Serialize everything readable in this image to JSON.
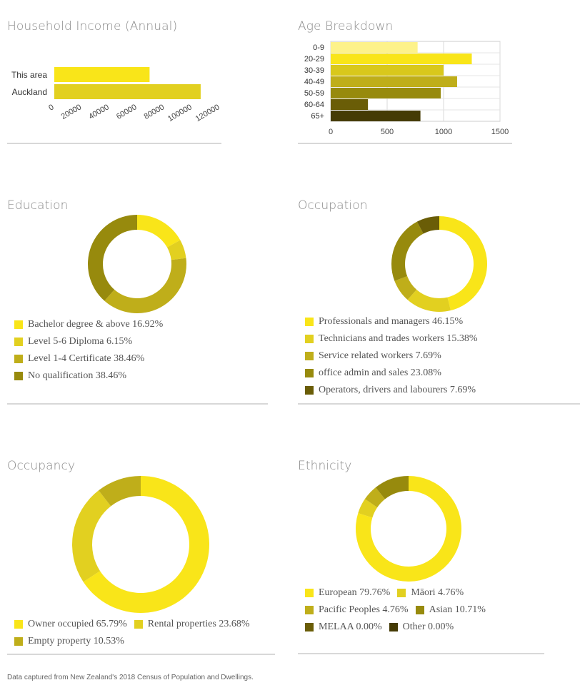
{
  "footer": "Data captured from New Zealand's 2018 Census of Population and Dwellings.",
  "colors": [
    "#f9e519",
    "#e2d020",
    "#bfae1a",
    "#978a0d",
    "#6a5d07",
    "#453b05"
  ],
  "chart_data": [
    {
      "id": "income",
      "type": "bar",
      "orientation": "horizontal",
      "title": "Household Income (Annual)",
      "categories": [
        "This area",
        "Auckland"
      ],
      "values": [
        69000,
        106000
      ],
      "colors": [
        "#f9e519",
        "#e2d020"
      ],
      "xlim": [
        0,
        120000
      ],
      "xticks": [
        "0",
        "20000",
        "40000",
        "60000",
        "80000",
        "100000",
        "120000"
      ],
      "grid": false
    },
    {
      "id": "age",
      "type": "bar",
      "orientation": "horizontal",
      "title": "Age Breakdown",
      "categories": [
        "0-9",
        "20-29",
        "30-39",
        "40-49",
        "50-59",
        "60-64",
        "65+"
      ],
      "values": [
        770,
        1250,
        1000,
        1120,
        975,
        330,
        795
      ],
      "colors": [
        "#fdf28a",
        "#f9e519",
        "#d9c81c",
        "#bfae1a",
        "#978a0d",
        "#6a5d07",
        "#453b05"
      ],
      "xlim": [
        0,
        1500
      ],
      "xticks": [
        "0",
        "500",
        "1000",
        "1500"
      ],
      "grid": true
    },
    {
      "id": "education",
      "type": "pie",
      "donut": true,
      "title": "Education",
      "labels": [
        "Bachelor degree & above 16.92%",
        "Level 5-6 Diploma 6.15%",
        "Level 1-4 Certificate 38.46%",
        "No qualification 38.46%"
      ],
      "values": [
        16.92,
        6.15,
        38.46,
        38.46
      ],
      "colors": [
        "#f9e519",
        "#e2d020",
        "#bfae1a",
        "#978a0d"
      ]
    },
    {
      "id": "occupation",
      "type": "pie",
      "donut": true,
      "title": "Occupation",
      "labels": [
        "Professionals and managers 46.15%",
        "Technicians and trades workers 15.38%",
        "Service related workers 7.69%",
        "office admin and sales 23.08%",
        "Operators, drivers and labourers 7.69%"
      ],
      "values": [
        46.15,
        15.38,
        7.69,
        23.08,
        7.69
      ],
      "colors": [
        "#f9e519",
        "#e2d020",
        "#bfae1a",
        "#978a0d",
        "#6a5d07"
      ]
    },
    {
      "id": "occupancy",
      "type": "pie",
      "donut": true,
      "title": "Occupancy",
      "labels": [
        "Owner occupied 65.79%",
        "Rental properties 23.68%",
        "Empty property 10.53%"
      ],
      "values": [
        65.79,
        23.68,
        10.53
      ],
      "colors": [
        "#f9e519",
        "#e2d020",
        "#bfae1a"
      ]
    },
    {
      "id": "ethnicity",
      "type": "pie",
      "donut": true,
      "title": "Ethnicity",
      "labels": [
        "European 79.76%",
        "Māori 4.76%",
        "Pacific Peoples 4.76%",
        "Asian 10.71%",
        "MELAA 0.00%",
        "Other 0.00%"
      ],
      "values": [
        79.76,
        4.76,
        4.76,
        10.71,
        0.0,
        0.0
      ],
      "colors": [
        "#f9e519",
        "#e2d020",
        "#bfae1a",
        "#978a0d",
        "#6a5d07",
        "#453b05"
      ]
    }
  ]
}
